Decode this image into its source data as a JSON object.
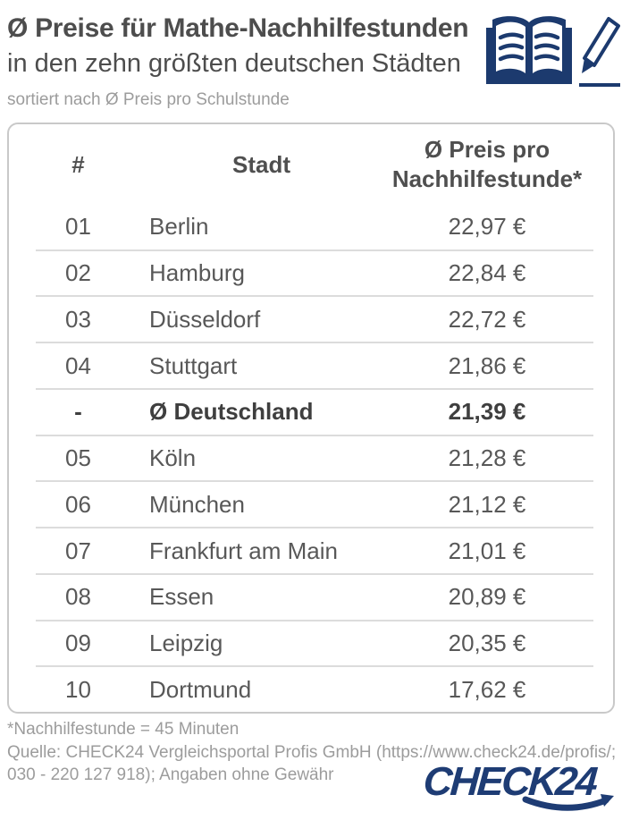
{
  "colors": {
    "accent_navy": "#1c3a6e",
    "logo_blue": "#1e3c74",
    "title_gray": "#4d4d4d",
    "table_text": "#585858",
    "muted_gray": "#9c9c9c",
    "divider": "#dcdcdc",
    "card_border": "#c9c9c9"
  },
  "header": {
    "title": "Ø Preise für Mathe-Nachhilfestunden",
    "subtitle": "in den zehn größten deutschen Städten",
    "sort_note": "sortiert nach Ø Preis pro Schulstunde"
  },
  "icons": {
    "book": "open-book-icon",
    "pencil": "pencil-icon"
  },
  "table": {
    "col_rank": "#",
    "col_city": "Stadt",
    "col_price_line1": "Ø Preis pro",
    "col_price_line2": "Nachhilfestunde*",
    "rows": [
      {
        "rank": "01",
        "city": "Berlin",
        "price": "22,97 €",
        "bold": false
      },
      {
        "rank": "02",
        "city": "Hamburg",
        "price": "22,84 €",
        "bold": false
      },
      {
        "rank": "03",
        "city": "Düsseldorf",
        "price": "22,72 €",
        "bold": false
      },
      {
        "rank": "04",
        "city": "Stuttgart",
        "price": "21,86 €",
        "bold": false
      },
      {
        "rank": "-",
        "city": "Ø Deutschland",
        "price": "21,39 €",
        "bold": true
      },
      {
        "rank": "05",
        "city": "Köln",
        "price": "21,28 €",
        "bold": false
      },
      {
        "rank": "06",
        "city": "München",
        "price": "21,12 €",
        "bold": false
      },
      {
        "rank": "07",
        "city": "Frankfurt am Main",
        "price": "21,01 €",
        "bold": false
      },
      {
        "rank": "08",
        "city": "Essen",
        "price": "20,89 €",
        "bold": false
      },
      {
        "rank": "09",
        "city": "Leipzig",
        "price": "20,35 €",
        "bold": false
      },
      {
        "rank": "10",
        "city": "Dortmund",
        "price": "17,62 €",
        "bold": false
      }
    ]
  },
  "footer": {
    "footnote": "*Nachhilfestunde = 45 Minuten",
    "source_line1": "Quelle: CHECK24 Vergleichsportal Profis GmbH (https://www.check24.de/profis/;",
    "source_line2": "030 - 220 127 918); Angaben ohne Gewähr",
    "logo_text": "CHECK24"
  },
  "chart_data": {
    "type": "table",
    "title": "Ø Preise für Mathe-Nachhilfestunden in den zehn größten deutschen Städten",
    "subtitle": "sortiert nach Ø Preis pro Schulstunde",
    "columns": [
      "#",
      "Stadt",
      "Ø Preis pro Nachhilfestunde*"
    ],
    "unit": "EUR",
    "rows": [
      [
        "01",
        "Berlin",
        22.97
      ],
      [
        "02",
        "Hamburg",
        22.84
      ],
      [
        "03",
        "Düsseldorf",
        22.72
      ],
      [
        "04",
        "Stuttgart",
        21.86
      ],
      [
        "-",
        "Ø Deutschland",
        21.39
      ],
      [
        "05",
        "Köln",
        21.28
      ],
      [
        "06",
        "München",
        21.12
      ],
      [
        "07",
        "Frankfurt am Main",
        21.01
      ],
      [
        "08",
        "Essen",
        20.89
      ],
      [
        "09",
        "Leipzig",
        20.35
      ],
      [
        "10",
        "Dortmund",
        17.62
      ]
    ],
    "footnote": "*Nachhilfestunde = 45 Minuten",
    "source": "Quelle: CHECK24 Vergleichsportal Profis GmbH (https://www.check24.de/profis/; 030 - 220 127 918); Angaben ohne Gewähr"
  }
}
